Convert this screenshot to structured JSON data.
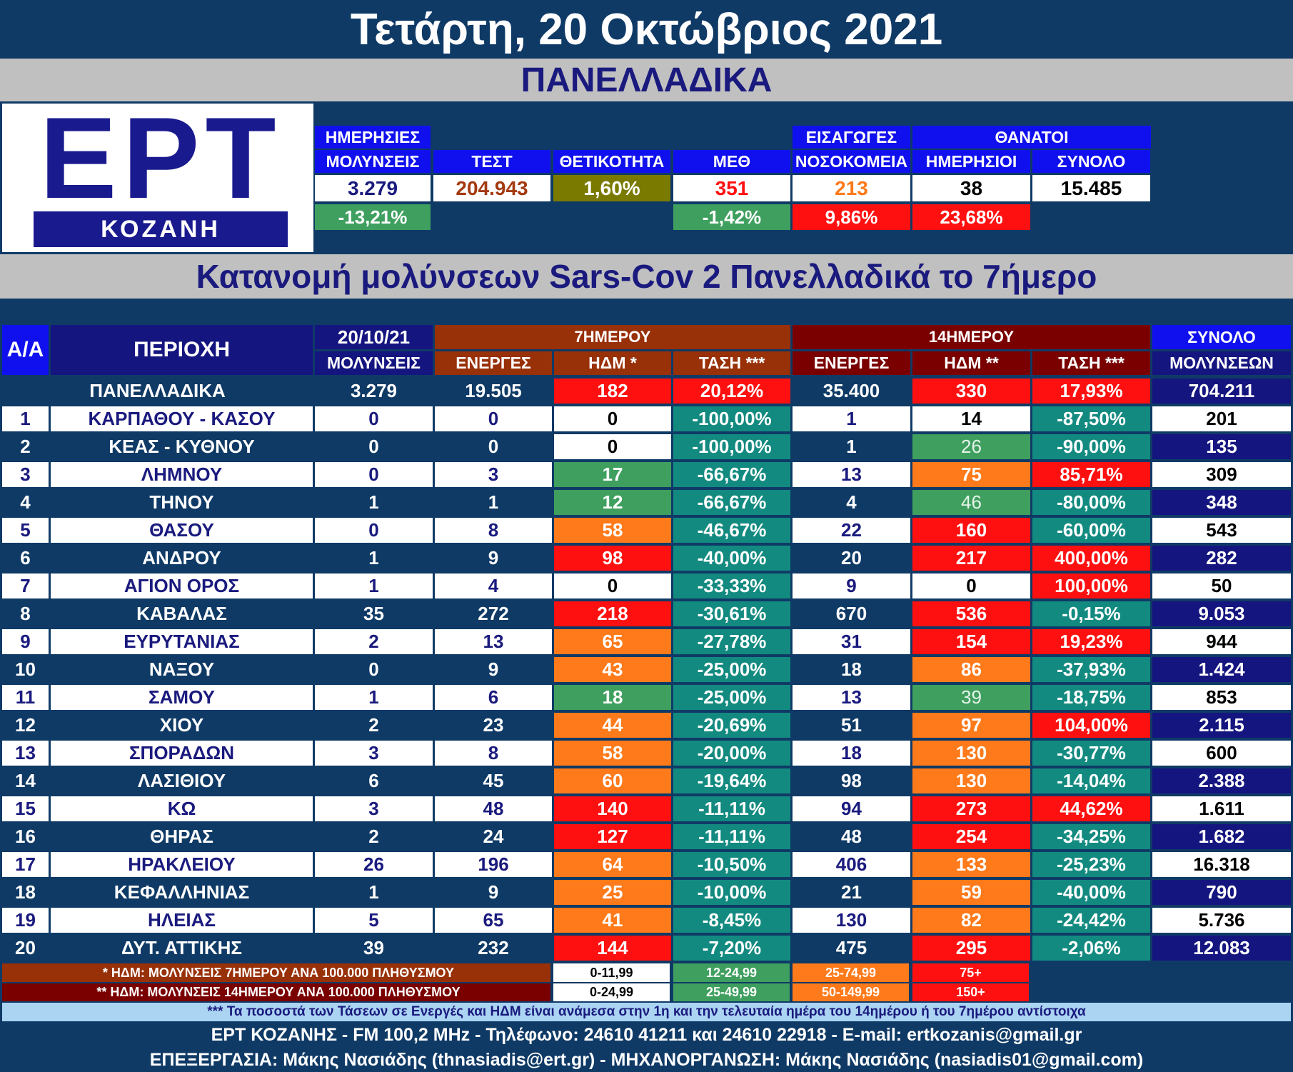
{
  "header": {
    "date_title": "Τετάρτη, 20 Οκτώβριος 2021",
    "region": "ΠΑΝΕΛΛΑΔΙΚΑ",
    "subtitle": "Κατανομή μολύνσεων Sars-Cov 2 Πανελλαδικά το 7ήμερο"
  },
  "logo": {
    "letters": "ΕΡΤ",
    "sub": "ΚΟΖΑΝΗ"
  },
  "stats": {
    "daily_infections": {
      "label1": "ΗΜΕΡΗΣΙΕΣ",
      "label2": "ΜΟΛΥΝΣΕΙΣ",
      "value": "3.279",
      "change": "-13,21%"
    },
    "tests": {
      "label": "ΤΕΣΤ",
      "value": "204.943"
    },
    "positivity": {
      "label": "ΘΕΤΙΚΟΤΗΤΑ",
      "value": "1,60%"
    },
    "icu": {
      "label": "ΜΕΘ",
      "value": "351",
      "change": "-1,42%"
    },
    "admissions": {
      "label1": "ΕΙΣΑΓΩΓΕΣ",
      "label2": "ΝΟΣΟΚΟΜΕΙΑ",
      "value": "213",
      "change": "9,86%"
    },
    "deaths": {
      "group": "ΘΑΝΑΤΟΙ",
      "daily_label": "ΗΜΕΡΗΣΙΟΙ",
      "daily_value": "38",
      "daily_change": "23,68%",
      "total_label": "ΣΥΝΟΛΟ",
      "total_value": "15.485"
    }
  },
  "table": {
    "headers": {
      "aa": "Α/Α",
      "area": "ΠΕΡΙΟΧΗ",
      "date": "20/10/21",
      "infections": "ΜΟΛΥΝΣΕΙΣ",
      "week_group": "7ΗΜΕΡΟΥ",
      "fortnight_group": "14ΗΜΕΡΟΥ",
      "active": "ΕΝΕΡΓΕΣ",
      "ndm7": "ΗΔΜ *",
      "ndm14": "ΗΔΜ **",
      "trend": "ΤΑΣΗ ***",
      "total_group": "ΣΥΝΟΛΟ",
      "total_infections": "ΜΟΛΥΝΣΕΩΝ"
    },
    "national": {
      "name": "ΠΑΝΕΛΛΑΔΙΚΑ",
      "day": "3.279",
      "act7": "19.505",
      "ndm7": "182",
      "trend7": "20,12%",
      "act14": "35.400",
      "ndm14": "330",
      "trend14": "17,93%",
      "total": "704.211"
    },
    "rows": [
      {
        "aa": "1",
        "name": "ΚΑΡΠΑΘΟΥ - ΚΑΣΟΥ",
        "day": "0",
        "act7": "0",
        "ndm7": "0",
        "trend7": "-100,00%",
        "act14": "1",
        "ndm14": "14",
        "trend14": "-87,50%",
        "total": "201"
      },
      {
        "aa": "2",
        "name": "ΚΕΑΣ - ΚΥΘΝΟΥ",
        "day": "0",
        "act7": "0",
        "ndm7": "0",
        "trend7": "-100,00%",
        "act14": "1",
        "ndm14": "26",
        "trend14": "-90,00%",
        "total": "135"
      },
      {
        "aa": "3",
        "name": "ΛΗΜΝΟΥ",
        "day": "0",
        "act7": "3",
        "ndm7": "17",
        "trend7": "-66,67%",
        "act14": "13",
        "ndm14": "75",
        "trend14": "85,71%",
        "total": "309"
      },
      {
        "aa": "4",
        "name": "ΤΗΝΟΥ",
        "day": "1",
        "act7": "1",
        "ndm7": "12",
        "trend7": "-66,67%",
        "act14": "4",
        "ndm14": "46",
        "trend14": "-80,00%",
        "total": "348"
      },
      {
        "aa": "5",
        "name": "ΘΑΣΟΥ",
        "day": "0",
        "act7": "8",
        "ndm7": "58",
        "trend7": "-46,67%",
        "act14": "22",
        "ndm14": "160",
        "trend14": "-60,00%",
        "total": "543"
      },
      {
        "aa": "6",
        "name": "ΑΝΔΡΟΥ",
        "day": "1",
        "act7": "9",
        "ndm7": "98",
        "trend7": "-40,00%",
        "act14": "20",
        "ndm14": "217",
        "trend14": "400,00%",
        "total": "282"
      },
      {
        "aa": "7",
        "name": "ΑΓΙΟΝ ΟΡΟΣ",
        "day": "1",
        "act7": "4",
        "ndm7": "0",
        "trend7": "-33,33%",
        "act14": "9",
        "ndm14": "0",
        "trend14": "100,00%",
        "total": "50"
      },
      {
        "aa": "8",
        "name": "ΚΑΒΑΛΑΣ",
        "day": "35",
        "act7": "272",
        "ndm7": "218",
        "trend7": "-30,61%",
        "act14": "670",
        "ndm14": "536",
        "trend14": "-0,15%",
        "total": "9.053"
      },
      {
        "aa": "9",
        "name": "ΕΥΡΥΤΑΝΙΑΣ",
        "day": "2",
        "act7": "13",
        "ndm7": "65",
        "trend7": "-27,78%",
        "act14": "31",
        "ndm14": "154",
        "trend14": "19,23%",
        "total": "944"
      },
      {
        "aa": "10",
        "name": "ΝΑΞΟΥ",
        "day": "0",
        "act7": "9",
        "ndm7": "43",
        "trend7": "-25,00%",
        "act14": "18",
        "ndm14": "86",
        "trend14": "-37,93%",
        "total": "1.424"
      },
      {
        "aa": "11",
        "name": "ΣΑΜΟΥ",
        "day": "1",
        "act7": "6",
        "ndm7": "18",
        "trend7": "-25,00%",
        "act14": "13",
        "ndm14": "39",
        "trend14": "-18,75%",
        "total": "853"
      },
      {
        "aa": "12",
        "name": "ΧΙΟΥ",
        "day": "2",
        "act7": "23",
        "ndm7": "44",
        "trend7": "-20,69%",
        "act14": "51",
        "ndm14": "97",
        "trend14": "104,00%",
        "total": "2.115"
      },
      {
        "aa": "13",
        "name": "ΣΠΟΡΑΔΩΝ",
        "day": "3",
        "act7": "8",
        "ndm7": "58",
        "trend7": "-20,00%",
        "act14": "18",
        "ndm14": "130",
        "trend14": "-30,77%",
        "total": "600"
      },
      {
        "aa": "14",
        "name": "ΛΑΣΙΘΙΟΥ",
        "day": "6",
        "act7": "45",
        "ndm7": "60",
        "trend7": "-19,64%",
        "act14": "98",
        "ndm14": "130",
        "trend14": "-14,04%",
        "total": "2.388"
      },
      {
        "aa": "15",
        "name": "ΚΩ",
        "day": "3",
        "act7": "48",
        "ndm7": "140",
        "trend7": "-11,11%",
        "act14": "94",
        "ndm14": "273",
        "trend14": "44,62%",
        "total": "1.611"
      },
      {
        "aa": "16",
        "name": "ΘΗΡΑΣ",
        "day": "2",
        "act7": "24",
        "ndm7": "127",
        "trend7": "-11,11%",
        "act14": "48",
        "ndm14": "254",
        "trend14": "-34,25%",
        "total": "1.682"
      },
      {
        "aa": "17",
        "name": "ΗΡΑΚΛΕΙΟΥ",
        "day": "26",
        "act7": "196",
        "ndm7": "64",
        "trend7": "-10,50%",
        "act14": "406",
        "ndm14": "133",
        "trend14": "-25,23%",
        "total": "16.318"
      },
      {
        "aa": "18",
        "name": "ΚΕΦΑΛΛΗΝΙΑΣ",
        "day": "1",
        "act7": "9",
        "ndm7": "25",
        "trend7": "-10,00%",
        "act14": "21",
        "ndm14": "59",
        "trend14": "-40,00%",
        "total": "790"
      },
      {
        "aa": "19",
        "name": "ΗΛΕΙΑΣ",
        "day": "5",
        "act7": "65",
        "ndm7": "41",
        "trend7": "-8,45%",
        "act14": "130",
        "ndm14": "82",
        "trend14": "-24,42%",
        "total": "5.736"
      },
      {
        "aa": "20",
        "name": "ΔΥΤ. ΑΤΤΙΚΗΣ",
        "day": "39",
        "act7": "232",
        "ndm7": "144",
        "trend7": "-7,20%",
        "act14": "475",
        "ndm14": "295",
        "trend14": "-2,06%",
        "total": "12.083"
      }
    ]
  },
  "legend": {
    "ndm7_label": "* ΗΔΜ: ΜΟΛΥΝΣΕΙΣ 7ΗΜΕΡΟΥ ΑΝΑ 100.000 ΠΛΗΘΥΣΜΟΥ",
    "ndm14_label": "** ΗΔΜ: ΜΟΛΥΝΣΕΙΣ 14ΗΜΕΡΟΥ ΑΝΑ 100.000 ΠΛΗΘΥΣΜΟΥ",
    "ndm7_ranges": [
      "0-11,99",
      "12-24,99",
      "25-74,99",
      "75+"
    ],
    "ndm14_ranges": [
      "0-24,99",
      "25-49,99",
      "50-149,99",
      "150+"
    ]
  },
  "colors": {
    "white": "#ffffff",
    "green": "#3f9f5f",
    "orange": "#ff7a1a",
    "red": "#ff1010",
    "teal": "#138a80",
    "olive": "#7a7a00",
    "navy": "#151580",
    "bg": "#0f3a66"
  },
  "footer": {
    "note": "*** Τα ποσοστά των Τάσεων σε Ενεργές και ΗΔΜ είναι ανάμεσα στην 1η και την τελευταία ημέρα του 14ημέρου ή του 7ημέρου αντίστοιχα",
    "contact": "ΕΡΤ ΚΟΖΑΝΗΣ - FM 100,2 MHz - Τηλέφωνο:  24610 41211 και 24610 22918 - E-mail: ertkozanis@gmail.gr",
    "credits": "ΕΠΕΞΕΡΓΑΣΙΑ: Μάκης Νασιάδης (thnasiadis@ert.gr) - ΜΗΧΑΝΟΡΓΑΝΩΣΗ: Μάκης Νασιάδης (nasiadis01@gmail.com)"
  }
}
